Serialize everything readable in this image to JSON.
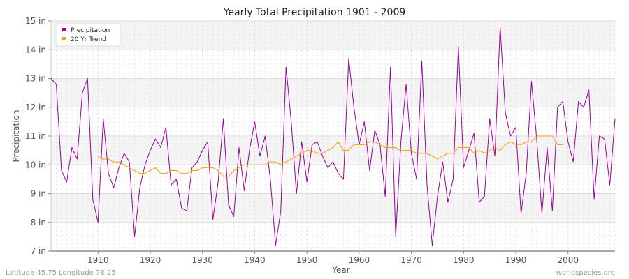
{
  "chart_data": {
    "type": "line",
    "title": "Yearly Total Precipitation 1901 - 2009",
    "xlabel": "Year",
    "ylabel": "Precipitation",
    "xlim": [
      1901,
      2009
    ],
    "ylim": [
      7,
      15
    ],
    "x_ticks": [
      1910,
      1920,
      1930,
      1940,
      1950,
      1960,
      1970,
      1980,
      1990,
      2000
    ],
    "y_ticks": [
      {
        "value": 7,
        "label": "7 in"
      },
      {
        "value": 8,
        "label": "8 in"
      },
      {
        "value": 9,
        "label": "9 in"
      },
      {
        "value": 10,
        "label": "10 in"
      },
      {
        "value": 11,
        "label": "11 in"
      },
      {
        "value": 12,
        "label": "12 in"
      },
      {
        "value": 13,
        "label": "13 in"
      },
      {
        "value": 14,
        "label": "14 in"
      },
      {
        "value": 15,
        "label": "15 in"
      }
    ],
    "grid": true,
    "legend_position": "top-left",
    "series": [
      {
        "name": "Precipitation",
        "color": "#990099",
        "x": [
          1901,
          1902,
          1903,
          1904,
          1905,
          1906,
          1907,
          1908,
          1909,
          1910,
          1911,
          1912,
          1913,
          1914,
          1915,
          1916,
          1917,
          1918,
          1919,
          1920,
          1921,
          1922,
          1923,
          1924,
          1925,
          1926,
          1927,
          1928,
          1929,
          1930,
          1931,
          1932,
          1933,
          1934,
          1935,
          1936,
          1937,
          1938,
          1939,
          1940,
          1941,
          1942,
          1943,
          1944,
          1945,
          1946,
          1947,
          1948,
          1949,
          1950,
          1951,
          1952,
          1953,
          1954,
          1955,
          1956,
          1957,
          1958,
          1959,
          1960,
          1961,
          1962,
          1963,
          1964,
          1965,
          1966,
          1967,
          1968,
          1969,
          1970,
          1971,
          1972,
          1973,
          1974,
          1975,
          1976,
          1977,
          1978,
          1979,
          1980,
          1981,
          1982,
          1983,
          1984,
          1985,
          1986,
          1987,
          1988,
          1989,
          1990,
          1991,
          1992,
          1993,
          1994,
          1995,
          1996,
          1997,
          1998,
          1999,
          2000,
          2001,
          2002,
          2003,
          2004,
          2005,
          2006,
          2007,
          2008,
          2009
        ],
        "values": [
          13.0,
          12.8,
          9.8,
          9.4,
          10.6,
          10.2,
          12.5,
          13.0,
          8.8,
          8.0,
          11.6,
          9.7,
          9.2,
          9.9,
          10.4,
          10.1,
          7.5,
          9.2,
          10.0,
          10.5,
          10.9,
          10.6,
          11.3,
          9.3,
          9.5,
          8.5,
          8.4,
          9.9,
          10.1,
          10.5,
          10.8,
          8.1,
          9.4,
          11.6,
          8.6,
          8.2,
          10.6,
          9.1,
          10.5,
          11.5,
          10.3,
          11.0,
          9.5,
          7.2,
          8.4,
          13.4,
          11.5,
          9.0,
          10.8,
          9.4,
          10.7,
          10.8,
          10.3,
          9.9,
          10.1,
          9.7,
          9.5,
          13.7,
          12.0,
          10.7,
          11.5,
          9.8,
          11.2,
          10.7,
          8.9,
          13.4,
          7.5,
          10.8,
          12.8,
          10.4,
          9.5,
          13.6,
          9.3,
          7.2,
          8.9,
          10.1,
          8.7,
          9.5,
          14.1,
          9.9,
          10.5,
          11.1,
          8.7,
          8.9,
          11.6,
          10.3,
          14.8,
          11.8,
          11.0,
          11.3,
          8.3,
          9.7,
          12.9,
          10.9,
          8.3,
          10.6,
          8.4,
          12.0,
          12.2,
          10.8,
          10.1,
          12.2,
          12.0,
          12.6,
          8.8,
          11.0,
          10.9,
          9.3,
          11.6
        ]
      },
      {
        "name": "20 Yr Trend",
        "color": "#ff9900",
        "x": [
          1910,
          1911,
          1912,
          1913,
          1914,
          1915,
          1916,
          1917,
          1918,
          1919,
          1920,
          1921,
          1922,
          1923,
          1924,
          1925,
          1926,
          1927,
          1928,
          1929,
          1930,
          1931,
          1932,
          1933,
          1934,
          1935,
          1936,
          1937,
          1938,
          1939,
          1940,
          1941,
          1942,
          1943,
          1944,
          1945,
          1946,
          1947,
          1948,
          1949,
          1950,
          1951,
          1952,
          1953,
          1954,
          1955,
          1956,
          1957,
          1958,
          1959,
          1960,
          1961,
          1962,
          1963,
          1964,
          1965,
          1966,
          1967,
          1968,
          1969,
          1970,
          1971,
          1972,
          1973,
          1974,
          1975,
          1976,
          1977,
          1978,
          1979,
          1980,
          1981,
          1982,
          1983,
          1984,
          1985,
          1986,
          1987,
          1988,
          1989,
          1990,
          1991,
          1992,
          1993,
          1994,
          1995,
          1996,
          1997,
          1998,
          1999
        ],
        "values": [
          10.3,
          10.2,
          10.2,
          10.1,
          10.1,
          10.0,
          9.9,
          9.8,
          9.7,
          9.7,
          9.8,
          9.9,
          9.7,
          9.7,
          9.8,
          9.8,
          9.7,
          9.7,
          9.8,
          9.8,
          9.9,
          9.9,
          9.9,
          9.8,
          9.6,
          9.6,
          9.8,
          9.9,
          10.0,
          10.0,
          10.0,
          10.0,
          10.0,
          10.1,
          10.1,
          10.0,
          10.1,
          10.2,
          10.3,
          10.4,
          10.5,
          10.5,
          10.4,
          10.4,
          10.5,
          10.6,
          10.8,
          10.5,
          10.5,
          10.7,
          10.7,
          10.7,
          10.8,
          10.8,
          10.7,
          10.6,
          10.6,
          10.6,
          10.5,
          10.5,
          10.5,
          10.4,
          10.4,
          10.4,
          10.3,
          10.2,
          10.3,
          10.4,
          10.4,
          10.6,
          10.6,
          10.6,
          10.4,
          10.5,
          10.4,
          10.5,
          10.6,
          10.5,
          10.7,
          10.8,
          10.7,
          10.7,
          10.8,
          10.8,
          11.0,
          11.0,
          11.0,
          11.0,
          10.7,
          10.7
        ]
      }
    ]
  },
  "footer": {
    "location": "Latitude 45.75 Longitude 78.25",
    "source": "worldspecies.org"
  }
}
